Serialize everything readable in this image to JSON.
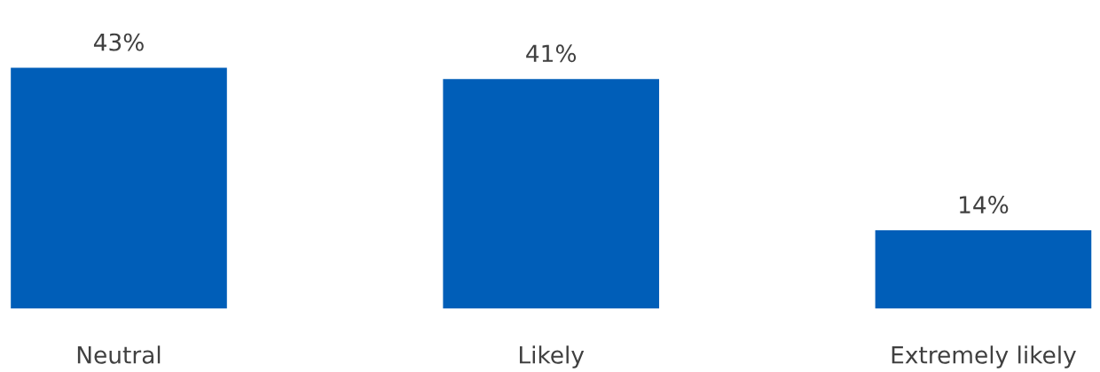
{
  "chart_data": {
    "type": "bar",
    "categories": [
      "Neutral",
      "Likely",
      "Extremely likely"
    ],
    "values": [
      43,
      41,
      14
    ],
    "color": "#005eb8",
    "value_labels": [
      "43%",
      "41%",
      "14%"
    ],
    "grid": false,
    "legend": false
  }
}
